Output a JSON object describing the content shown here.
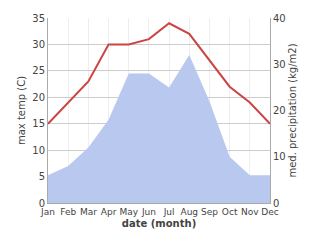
{
  "chart_data": {
    "type": "line",
    "categories": [
      "Jan",
      "Feb",
      "Mar",
      "Apr",
      "May",
      "Jun",
      "Jul",
      "Aug",
      "Sep",
      "Oct",
      "Nov",
      "Dec"
    ],
    "xlabel": "date (month)",
    "ylabel": "max temp (C)",
    "y2label": "med. precipitation (kg/m2)",
    "series": [
      {
        "type": "area",
        "axis": "y2",
        "color": "#b8c8ee",
        "values": [
          6,
          8,
          12,
          18,
          28,
          28,
          25,
          32,
          22,
          10,
          6,
          6
        ]
      },
      {
        "type": "line",
        "color": "#cc4444",
        "values": [
          15,
          19,
          23,
          30,
          30,
          31,
          34,
          32,
          27,
          22,
          19,
          15
        ]
      }
    ],
    "ylim": [
      0,
      35
    ],
    "yticks": [
      0,
      5,
      10,
      15,
      20,
      25,
      30,
      35
    ],
    "y2lim": [
      0,
      40
    ],
    "y2ticks": [
      0,
      10,
      20,
      30,
      40
    ],
    "grid": true
  }
}
